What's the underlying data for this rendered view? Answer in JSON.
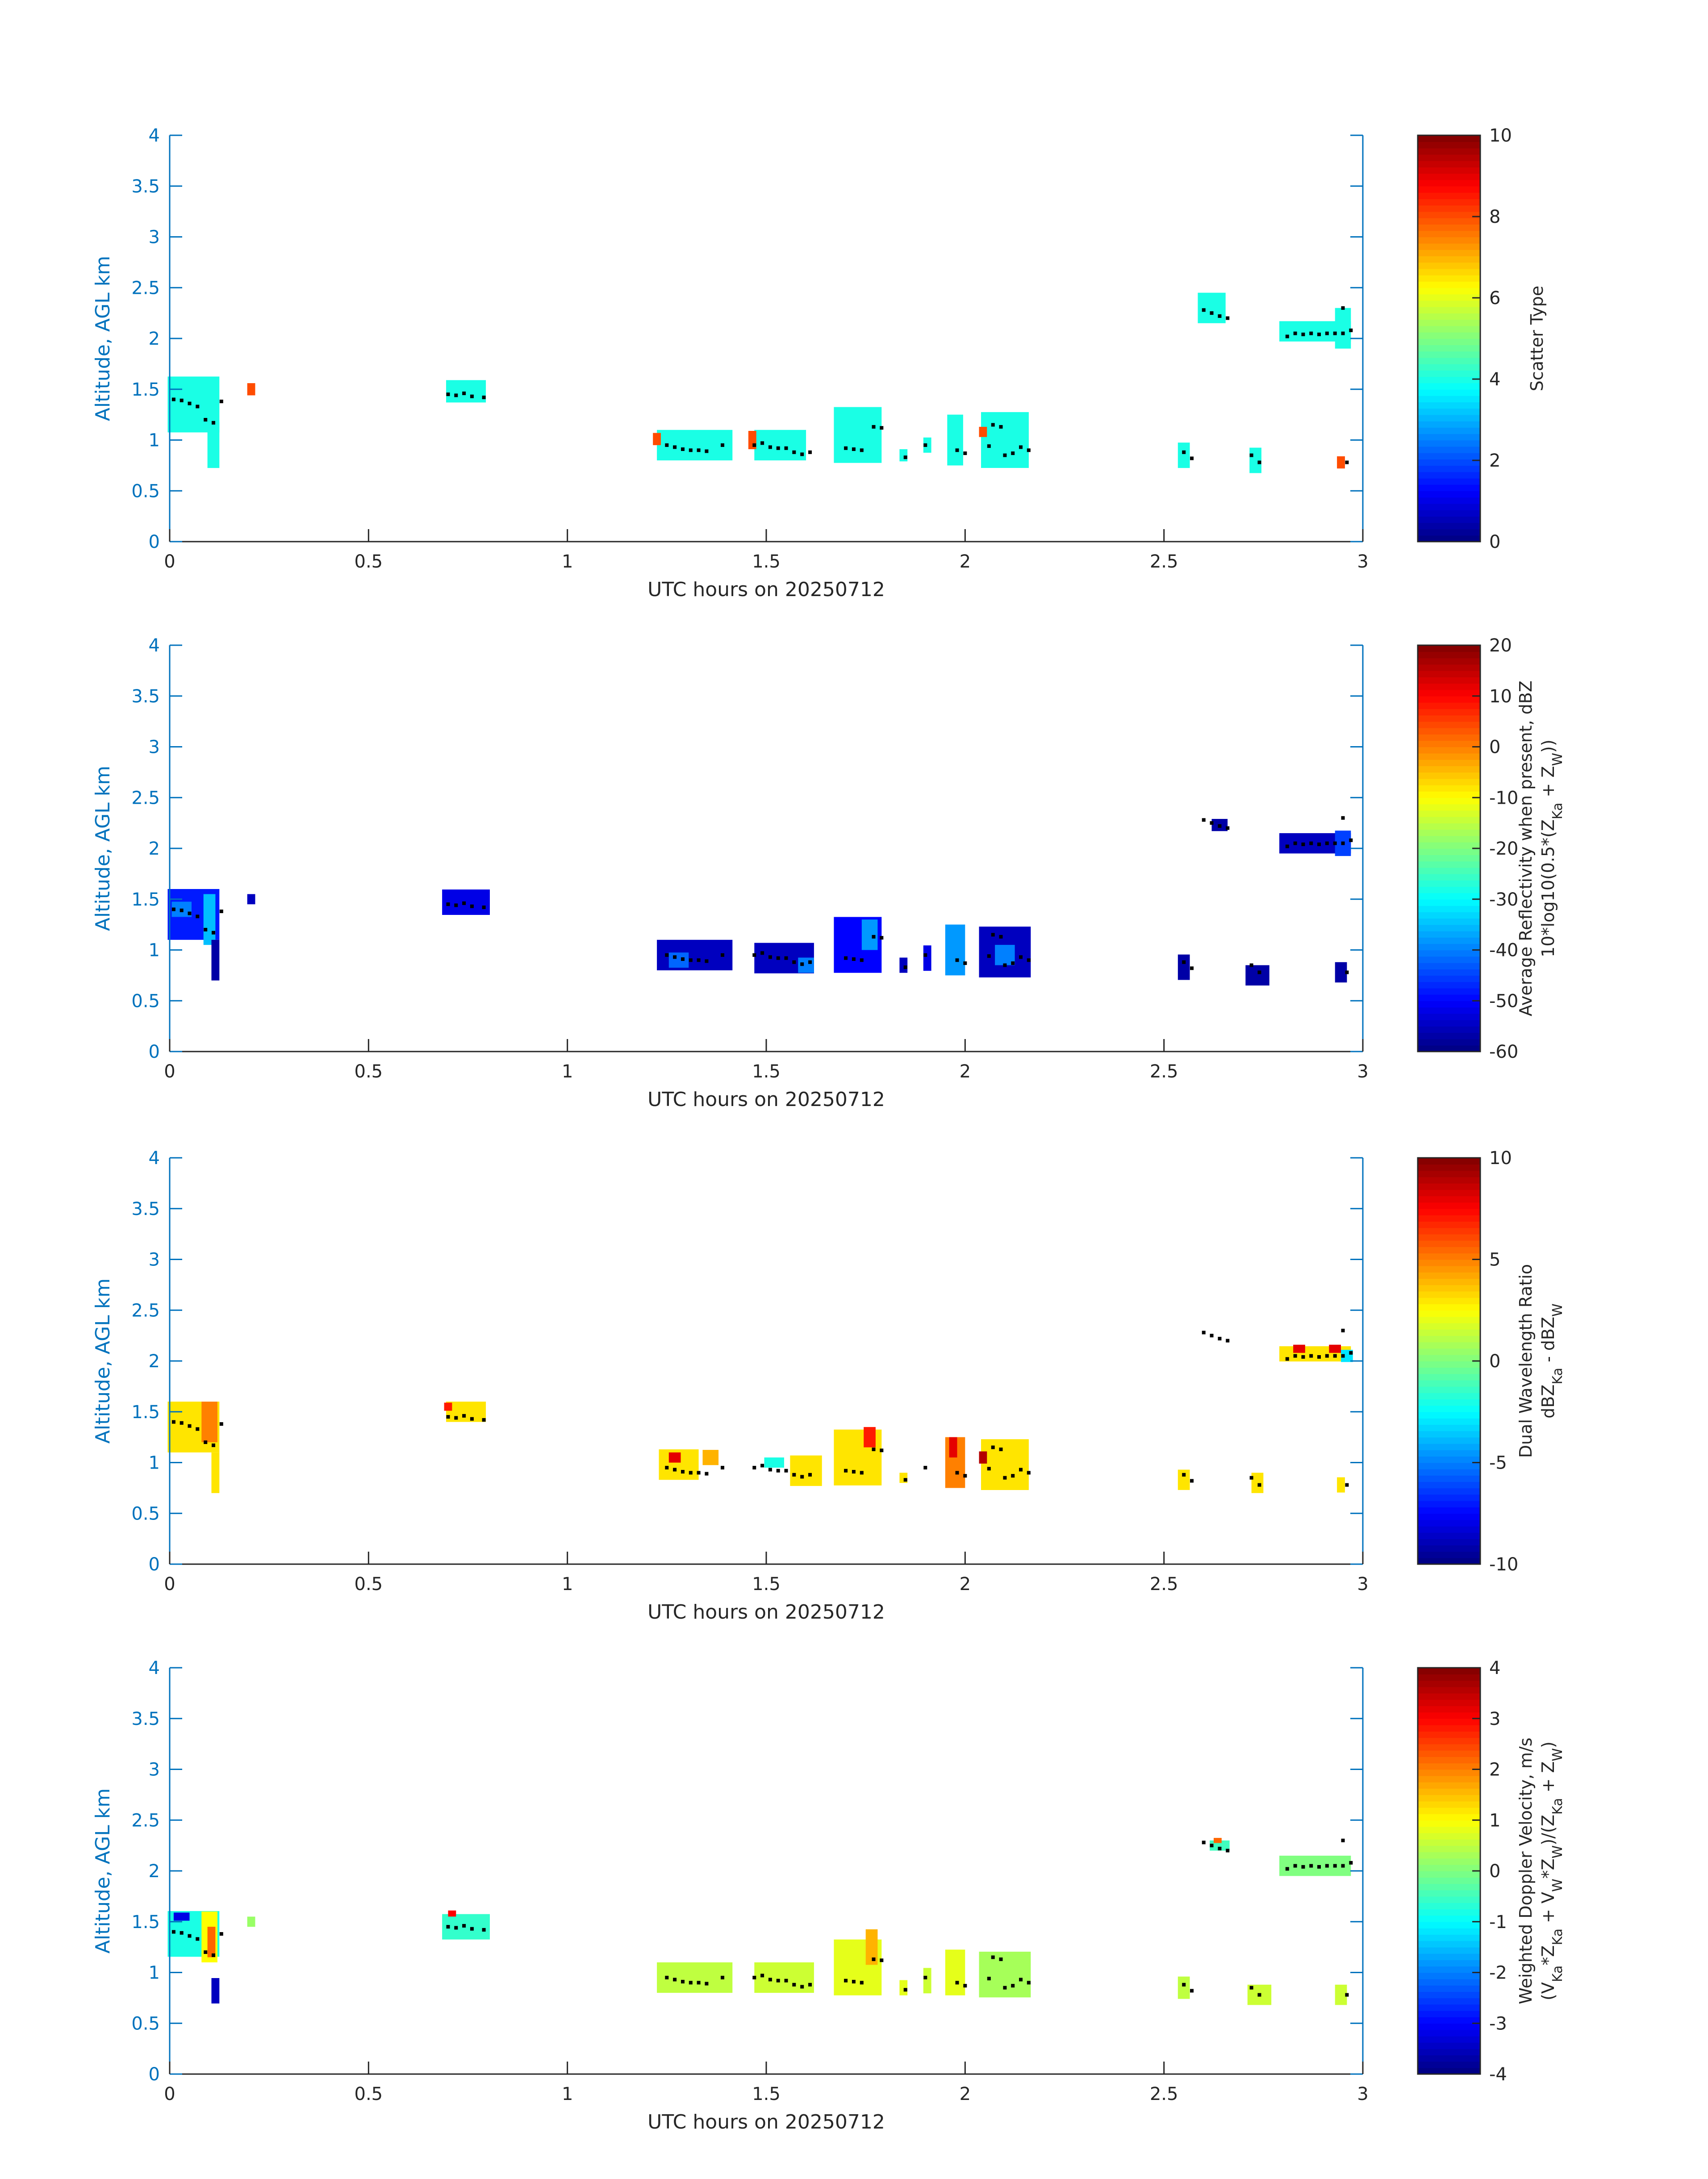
{
  "figure": {
    "xlabel": "UTC hours on 20250712",
    "ylabel": "Altitude, AGL km"
  },
  "chart_data": [
    {
      "type": "heatmap",
      "xlabel": "UTC hours on 20250712",
      "ylabel": "Altitude, AGL km",
      "xlim": [
        0,
        3
      ],
      "ylim": [
        0,
        4
      ],
      "xticks": [
        "0",
        "0.5",
        "1",
        "1.5",
        "2",
        "2.5",
        "3"
      ],
      "yticks": [
        "0",
        "0.5",
        "1",
        "1.5",
        "2",
        "2.5",
        "3",
        "3.5",
        "4"
      ],
      "colorbar": {
        "label_lines": [
          "Scatter Type"
        ],
        "range": [
          0,
          10
        ],
        "ticks": [
          "0",
          "2",
          "4",
          "6",
          "8",
          "10"
        ],
        "colormap": "jet"
      },
      "cells": [
        {
          "x": 0.06,
          "y": 1.35,
          "w": 0.13,
          "h": 0.55,
          "v": 4
        },
        {
          "x": 0.11,
          "y": 0.95,
          "w": 0.03,
          "h": 0.45,
          "v": 4
        },
        {
          "x": 0.205,
          "y": 1.5,
          "w": 0.02,
          "h": 0.12,
          "v": 8
        },
        {
          "x": 0.745,
          "y": 1.48,
          "w": 0.1,
          "h": 0.22,
          "v": 4
        },
        {
          "x": 1.32,
          "y": 0.95,
          "w": 0.19,
          "h": 0.3,
          "v": 4
        },
        {
          "x": 1.225,
          "y": 1.01,
          "w": 0.02,
          "h": 0.12,
          "v": 8
        },
        {
          "x": 1.535,
          "y": 0.95,
          "w": 0.13,
          "h": 0.3,
          "v": 4
        },
        {
          "x": 1.465,
          "y": 1.0,
          "w": 0.02,
          "h": 0.18,
          "v": 8
        },
        {
          "x": 1.73,
          "y": 1.05,
          "w": 0.12,
          "h": 0.55,
          "v": 4
        },
        {
          "x": 1.845,
          "y": 0.85,
          "w": 0.02,
          "h": 0.12,
          "v": 4
        },
        {
          "x": 1.905,
          "y": 0.95,
          "w": 0.02,
          "h": 0.15,
          "v": 4
        },
        {
          "x": 1.975,
          "y": 1.0,
          "w": 0.04,
          "h": 0.5,
          "v": 4
        },
        {
          "x": 2.1,
          "y": 1.0,
          "w": 0.12,
          "h": 0.55,
          "v": 4
        },
        {
          "x": 2.045,
          "y": 1.08,
          "w": 0.02,
          "h": 0.1,
          "v": 8
        },
        {
          "x": 2.55,
          "y": 0.85,
          "w": 0.03,
          "h": 0.25,
          "v": 4
        },
        {
          "x": 2.62,
          "y": 2.3,
          "w": 0.07,
          "h": 0.3,
          "v": 4
        },
        {
          "x": 2.73,
          "y": 0.8,
          "w": 0.03,
          "h": 0.25,
          "v": 4
        },
        {
          "x": 2.88,
          "y": 2.07,
          "w": 0.18,
          "h": 0.2,
          "v": 4
        },
        {
          "x": 2.95,
          "y": 2.1,
          "w": 0.04,
          "h": 0.4,
          "v": 4
        },
        {
          "x": 2.945,
          "y": 0.78,
          "w": 0.02,
          "h": 0.12,
          "v": 8
        }
      ]
    },
    {
      "type": "heatmap",
      "xlabel": "UTC hours on 20250712",
      "ylabel": "Altitude, AGL km",
      "xlim": [
        0,
        3
      ],
      "ylim": [
        0,
        4
      ],
      "xticks": [
        "0",
        "0.5",
        "1",
        "1.5",
        "2",
        "2.5",
        "3"
      ],
      "yticks": [
        "0",
        "0.5",
        "1",
        "1.5",
        "2",
        "2.5",
        "3",
        "3.5",
        "4"
      ],
      "colorbar": {
        "label_lines": [
          "Average Reflectivity when present, dBZ",
          "10*log10(0.5*(Z_Ka + Z_W))"
        ],
        "range": [
          -60,
          20
        ],
        "ticks": [
          "-60",
          "-50",
          "-40",
          "-30",
          "-20",
          "-10",
          "0",
          "10",
          "20"
        ],
        "colormap": "jet"
      },
      "cells": [
        {
          "x": 0.06,
          "y": 1.35,
          "w": 0.13,
          "h": 0.5,
          "v": -48
        },
        {
          "x": 0.1,
          "y": 1.3,
          "w": 0.03,
          "h": 0.5,
          "v": -35
        },
        {
          "x": 0.03,
          "y": 1.4,
          "w": 0.05,
          "h": 0.15,
          "v": -40
        },
        {
          "x": 0.115,
          "y": 0.9,
          "w": 0.02,
          "h": 0.4,
          "v": -57
        },
        {
          "x": 0.205,
          "y": 1.5,
          "w": 0.02,
          "h": 0.1,
          "v": -55
        },
        {
          "x": 0.745,
          "y": 1.47,
          "w": 0.12,
          "h": 0.25,
          "v": -52
        },
        {
          "x": 1.32,
          "y": 0.95,
          "w": 0.19,
          "h": 0.3,
          "v": -55
        },
        {
          "x": 1.28,
          "y": 0.9,
          "w": 0.05,
          "h": 0.15,
          "v": -42
        },
        {
          "x": 1.545,
          "y": 0.92,
          "w": 0.15,
          "h": 0.3,
          "v": -55
        },
        {
          "x": 1.6,
          "y": 0.85,
          "w": 0.04,
          "h": 0.15,
          "v": -40
        },
        {
          "x": 1.73,
          "y": 1.05,
          "w": 0.12,
          "h": 0.55,
          "v": -50
        },
        {
          "x": 1.76,
          "y": 1.15,
          "w": 0.04,
          "h": 0.3,
          "v": -38
        },
        {
          "x": 1.845,
          "y": 0.85,
          "w": 0.02,
          "h": 0.15,
          "v": -55
        },
        {
          "x": 1.905,
          "y": 0.92,
          "w": 0.02,
          "h": 0.25,
          "v": -52
        },
        {
          "x": 1.975,
          "y": 1.0,
          "w": 0.05,
          "h": 0.5,
          "v": -38
        },
        {
          "x": 2.1,
          "y": 0.98,
          "w": 0.13,
          "h": 0.5,
          "v": -55
        },
        {
          "x": 2.1,
          "y": 0.95,
          "w": 0.05,
          "h": 0.2,
          "v": -40
        },
        {
          "x": 2.55,
          "y": 0.83,
          "w": 0.03,
          "h": 0.25,
          "v": -57
        },
        {
          "x": 2.64,
          "y": 2.23,
          "w": 0.04,
          "h": 0.12,
          "v": -57
        },
        {
          "x": 2.735,
          "y": 0.75,
          "w": 0.06,
          "h": 0.2,
          "v": -57
        },
        {
          "x": 2.88,
          "y": 2.05,
          "w": 0.18,
          "h": 0.2,
          "v": -55
        },
        {
          "x": 2.95,
          "y": 2.05,
          "w": 0.04,
          "h": 0.25,
          "v": -45
        },
        {
          "x": 2.945,
          "y": 0.78,
          "w": 0.03,
          "h": 0.2,
          "v": -57
        }
      ]
    },
    {
      "type": "heatmap",
      "xlabel": "UTC hours on 20250712",
      "ylabel": "Altitude, AGL km",
      "xlim": [
        0,
        3
      ],
      "ylim": [
        0,
        4
      ],
      "xticks": [
        "0",
        "0.5",
        "1",
        "1.5",
        "2",
        "2.5",
        "3"
      ],
      "yticks": [
        "0",
        "0.5",
        "1",
        "1.5",
        "2",
        "2.5",
        "3",
        "3.5",
        "4"
      ],
      "colorbar": {
        "label_lines": [
          "Dual Wavelength Ratio",
          "dBZ_Ka - dBZ_W"
        ],
        "range": [
          -10,
          10
        ],
        "ticks": [
          "-10",
          "-5",
          "0",
          "5",
          "10"
        ],
        "colormap": "jet"
      },
      "cells": [
        {
          "x": 0.06,
          "y": 1.35,
          "w": 0.13,
          "h": 0.5,
          "v": 3
        },
        {
          "x": 0.1,
          "y": 1.4,
          "w": 0.04,
          "h": 0.4,
          "v": 5
        },
        {
          "x": 0.115,
          "y": 0.9,
          "w": 0.02,
          "h": 0.4,
          "v": 3
        },
        {
          "x": 0.745,
          "y": 1.5,
          "w": 0.1,
          "h": 0.2,
          "v": 3
        },
        {
          "x": 0.7,
          "y": 1.55,
          "w": 0.02,
          "h": 0.08,
          "v": 7
        },
        {
          "x": 1.28,
          "y": 0.98,
          "w": 0.1,
          "h": 0.3,
          "v": 3
        },
        {
          "x": 1.27,
          "y": 1.05,
          "w": 0.03,
          "h": 0.1,
          "v": 8
        },
        {
          "x": 1.36,
          "y": 1.05,
          "w": 0.04,
          "h": 0.15,
          "v": 4
        },
        {
          "x": 1.52,
          "y": 1.0,
          "w": 0.05,
          "h": 0.1,
          "v": -2
        },
        {
          "x": 1.6,
          "y": 0.92,
          "w": 0.08,
          "h": 0.3,
          "v": 3
        },
        {
          "x": 1.73,
          "y": 1.05,
          "w": 0.12,
          "h": 0.55,
          "v": 3
        },
        {
          "x": 1.76,
          "y": 1.25,
          "w": 0.03,
          "h": 0.2,
          "v": 7
        },
        {
          "x": 1.845,
          "y": 0.85,
          "w": 0.02,
          "h": 0.1,
          "v": 3
        },
        {
          "x": 1.975,
          "y": 1.0,
          "w": 0.05,
          "h": 0.5,
          "v": 5
        },
        {
          "x": 1.97,
          "y": 1.15,
          "w": 0.02,
          "h": 0.2,
          "v": 8
        },
        {
          "x": 2.1,
          "y": 0.98,
          "w": 0.12,
          "h": 0.5,
          "v": 3
        },
        {
          "x": 2.045,
          "y": 1.05,
          "w": 0.02,
          "h": 0.12,
          "v": 9
        },
        {
          "x": 2.55,
          "y": 0.83,
          "w": 0.03,
          "h": 0.2,
          "v": 3
        },
        {
          "x": 2.735,
          "y": 0.8,
          "w": 0.03,
          "h": 0.2,
          "v": 3
        },
        {
          "x": 2.88,
          "y": 2.07,
          "w": 0.18,
          "h": 0.15,
          "v": 3
        },
        {
          "x": 2.84,
          "y": 2.12,
          "w": 0.03,
          "h": 0.08,
          "v": 8
        },
        {
          "x": 2.93,
          "y": 2.12,
          "w": 0.03,
          "h": 0.08,
          "v": 8
        },
        {
          "x": 2.96,
          "y": 2.05,
          "w": 0.03,
          "h": 0.12,
          "v": -3
        },
        {
          "x": 2.945,
          "y": 0.78,
          "w": 0.02,
          "h": 0.15,
          "v": 3
        }
      ]
    },
    {
      "type": "heatmap",
      "xlabel": "UTC hours on 20250712",
      "ylabel": "Altitude, AGL km",
      "xlim": [
        0,
        3
      ],
      "ylim": [
        0,
        4
      ],
      "xticks": [
        "0",
        "0.5",
        "1",
        "1.5",
        "2",
        "2.5",
        "3"
      ],
      "yticks": [
        "0",
        "0.5",
        "1",
        "1.5",
        "2",
        "2.5",
        "3",
        "3.5",
        "4"
      ],
      "colorbar": {
        "label_lines": [
          "Weighted Doppler Velocity, m/s",
          "(V_Ka*Z_Ka + V_W*Z_W)/(Z_Ka + Z_W)"
        ],
        "range": [
          -4,
          4
        ],
        "ticks": [
          "-4",
          "-3",
          "-2",
          "-1",
          "0",
          "1",
          "2",
          "3",
          "4"
        ],
        "colormap": "jet"
      },
      "cells": [
        {
          "x": 0.06,
          "y": 1.38,
          "w": 0.13,
          "h": 0.45,
          "v": -0.8
        },
        {
          "x": 0.1,
          "y": 1.35,
          "w": 0.04,
          "h": 0.5,
          "v": 1.0
        },
        {
          "x": 0.105,
          "y": 1.3,
          "w": 0.02,
          "h": 0.3,
          "v": 2.2
        },
        {
          "x": 0.03,
          "y": 1.55,
          "w": 0.04,
          "h": 0.08,
          "v": -3.2
        },
        {
          "x": 0.115,
          "y": 0.82,
          "w": 0.02,
          "h": 0.25,
          "v": -3.5
        },
        {
          "x": 0.205,
          "y": 1.5,
          "w": 0.02,
          "h": 0.1,
          "v": 0.2
        },
        {
          "x": 0.745,
          "y": 1.45,
          "w": 0.12,
          "h": 0.25,
          "v": -0.6
        },
        {
          "x": 0.71,
          "y": 1.58,
          "w": 0.02,
          "h": 0.06,
          "v": 3
        },
        {
          "x": 1.32,
          "y": 0.95,
          "w": 0.19,
          "h": 0.3,
          "v": 0.5
        },
        {
          "x": 1.545,
          "y": 0.95,
          "w": 0.15,
          "h": 0.3,
          "v": 0.6
        },
        {
          "x": 1.73,
          "y": 1.05,
          "w": 0.12,
          "h": 0.55,
          "v": 0.8
        },
        {
          "x": 1.765,
          "y": 1.25,
          "w": 0.03,
          "h": 0.35,
          "v": 1.6
        },
        {
          "x": 1.845,
          "y": 0.85,
          "w": 0.02,
          "h": 0.15,
          "v": 0.8
        },
        {
          "x": 1.905,
          "y": 0.92,
          "w": 0.02,
          "h": 0.25,
          "v": 0.6
        },
        {
          "x": 1.975,
          "y": 1.0,
          "w": 0.05,
          "h": 0.45,
          "v": 0.8
        },
        {
          "x": 2.1,
          "y": 0.98,
          "w": 0.13,
          "h": 0.45,
          "v": 0.3
        },
        {
          "x": 2.55,
          "y": 0.85,
          "w": 0.03,
          "h": 0.22,
          "v": 0.5
        },
        {
          "x": 2.64,
          "y": 2.25,
          "w": 0.05,
          "h": 0.1,
          "v": -0.5
        },
        {
          "x": 2.635,
          "y": 2.3,
          "w": 0.02,
          "h": 0.05,
          "v": 2.2
        },
        {
          "x": 2.74,
          "y": 0.78,
          "w": 0.06,
          "h": 0.2,
          "v": 0.6
        },
        {
          "x": 2.88,
          "y": 2.05,
          "w": 0.18,
          "h": 0.2,
          "v": 0.0
        },
        {
          "x": 2.945,
          "y": 0.78,
          "w": 0.03,
          "h": 0.2,
          "v": 0.6
        }
      ]
    }
  ],
  "overlay_points": [
    [
      0.01,
      1.4
    ],
    [
      0.03,
      1.39
    ],
    [
      0.05,
      1.36
    ],
    [
      0.07,
      1.33
    ],
    [
      0.09,
      1.2
    ],
    [
      0.11,
      1.17
    ],
    [
      0.13,
      1.38
    ],
    [
      0.7,
      1.45
    ],
    [
      0.72,
      1.44
    ],
    [
      0.74,
      1.46
    ],
    [
      0.76,
      1.43
    ],
    [
      0.79,
      1.42
    ],
    [
      1.25,
      0.95
    ],
    [
      1.27,
      0.93
    ],
    [
      1.29,
      0.91
    ],
    [
      1.31,
      0.9
    ],
    [
      1.33,
      0.9
    ],
    [
      1.35,
      0.89
    ],
    [
      1.39,
      0.95
    ],
    [
      1.47,
      0.95
    ],
    [
      1.49,
      0.97
    ],
    [
      1.51,
      0.93
    ],
    [
      1.53,
      0.92
    ],
    [
      1.55,
      0.92
    ],
    [
      1.57,
      0.88
    ],
    [
      1.59,
      0.86
    ],
    [
      1.61,
      0.88
    ],
    [
      1.7,
      0.92
    ],
    [
      1.72,
      0.91
    ],
    [
      1.74,
      0.9
    ],
    [
      1.77,
      1.13
    ],
    [
      1.79,
      1.12
    ],
    [
      1.85,
      0.83
    ],
    [
      1.9,
      0.95
    ],
    [
      1.98,
      0.9
    ],
    [
      2.0,
      0.87
    ],
    [
      2.06,
      0.94
    ],
    [
      2.07,
      1.15
    ],
    [
      2.09,
      1.13
    ],
    [
      2.1,
      0.85
    ],
    [
      2.12,
      0.87
    ],
    [
      2.14,
      0.93
    ],
    [
      2.16,
      0.9
    ],
    [
      2.55,
      0.88
    ],
    [
      2.57,
      0.82
    ],
    [
      2.6,
      2.28
    ],
    [
      2.62,
      2.25
    ],
    [
      2.64,
      2.22
    ],
    [
      2.66,
      2.2
    ],
    [
      2.72,
      0.85
    ],
    [
      2.74,
      0.78
    ],
    [
      2.81,
      2.02
    ],
    [
      2.83,
      2.05
    ],
    [
      2.85,
      2.04
    ],
    [
      2.87,
      2.05
    ],
    [
      2.89,
      2.04
    ],
    [
      2.91,
      2.05
    ],
    [
      2.93,
      2.05
    ],
    [
      2.95,
      2.3
    ],
    [
      2.95,
      2.05
    ],
    [
      2.96,
      0.78
    ],
    [
      2.97,
      2.08
    ]
  ]
}
